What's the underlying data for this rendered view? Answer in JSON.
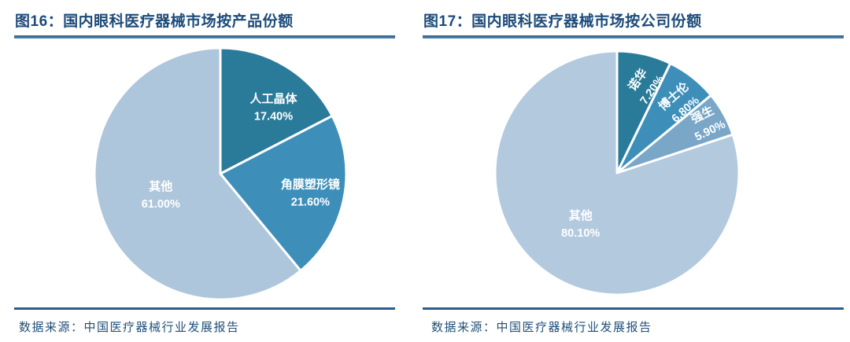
{
  "figures": [
    {
      "figure_label": "图16",
      "title": "图16：国内眼科医疗器械市场按产品份额",
      "source": "数据来源：中国医疗器械行业发展报告"
    },
    {
      "figure_label": "图17",
      "title": "图17：国内眼科医疗器械市场按公司份额",
      "source": "数据来源：中国医疗器械行业发展报告"
    }
  ],
  "colors": {
    "title_text": "#1c4b7a",
    "rule_line": "#2c5d8c",
    "source_text": "#1f4e79",
    "label_text": "#ffffff",
    "slice_dark_teal": "#2a7b99",
    "slice_medium_blue": "#3d8fba",
    "slice_steel_blue": "#7aa7c7",
    "slice_light_blue": "#aec6db"
  },
  "chart_data": [
    {
      "type": "pie",
      "title": "图16：国内眼科医疗器械市场按产品份额",
      "start_angle": 0,
      "direction": "clockwise",
      "legend": "none",
      "labels_on_slices": true,
      "slices": [
        {
          "label": "人工晶体",
          "value": 17.4,
          "value_text": "17.40%",
          "color": "#2a7b99",
          "label_r": 0.68,
          "label_angle_offset": 7,
          "label_rotate": 0
        },
        {
          "label": "角膜塑形镜",
          "value": 21.6,
          "value_text": "21.60%",
          "color": "#3d8fba",
          "label_r": 0.73,
          "label_angle_offset": 0,
          "label_rotate": 0
        },
        {
          "label": "其他",
          "value": 61.0,
          "value_text": "61.00%",
          "color": "#aec6db",
          "label_r": 0.5,
          "label_angle_offset": 1,
          "label_rotate": 0
        }
      ]
    },
    {
      "type": "pie",
      "title": "图17：国内眼科医疗器械市场按公司份额",
      "start_angle": 0,
      "direction": "clockwise",
      "legend": "none",
      "labels_on_slices": true,
      "slices": [
        {
          "label": "诺华",
          "value": 7.2,
          "value_text": "7.20%",
          "color": "#2a7b99",
          "label_r": 0.76,
          "label_angle_offset": 4,
          "label_rotate": -55
        },
        {
          "label": "博士伦",
          "value": 6.8,
          "value_text": "6.80%",
          "color": "#3d8fba",
          "label_r": 0.77,
          "label_angle_offset": 3,
          "label_rotate": -42
        },
        {
          "label": "强生",
          "value": 5.9,
          "value_text": "5.90%",
          "color": "#7aa7c7",
          "label_r": 0.84,
          "label_angle_offset": -1,
          "label_rotate": -26
        },
        {
          "label": "其他",
          "value": 80.1,
          "value_text": "80.10%",
          "color": "#b2c9de",
          "label_r": 0.51,
          "label_angle_offset": 0,
          "label_rotate": 0
        }
      ]
    }
  ]
}
